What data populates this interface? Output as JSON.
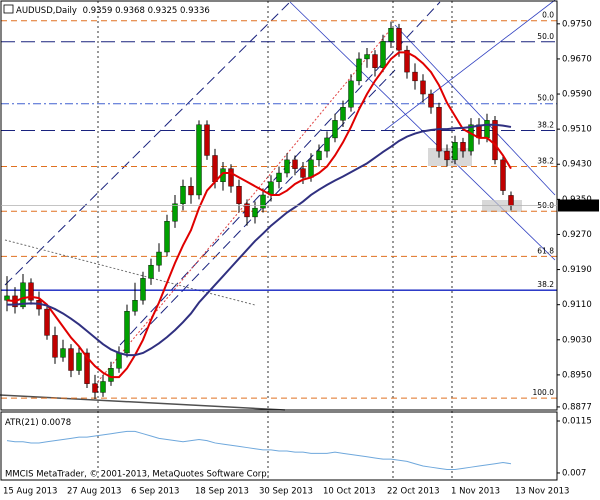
{
  "chart_data": {
    "type": "candlestick",
    "title": "AUDUSD,Daily",
    "categories": [
      "15 Aug 2013",
      null,
      null,
      null,
      null,
      null,
      null,
      null,
      "27 Aug 2013",
      null,
      null,
      null,
      null,
      null,
      null,
      null,
      "6 Sep 2013",
      null,
      null,
      null,
      null,
      null,
      null,
      null,
      "18 Sep 2013",
      null,
      null,
      null,
      null,
      null,
      null,
      null,
      "30 Sep 2013",
      null,
      null,
      null,
      null,
      null,
      null,
      null,
      "10 Oct 2013",
      null,
      null,
      null,
      null,
      null,
      null,
      null,
      "22 Oct 2013",
      null,
      null,
      null,
      null,
      null,
      null,
      null,
      "1 Nov 2013",
      null,
      null,
      null,
      null,
      null,
      null,
      null,
      "13 Nov 2013"
    ],
    "ohlc": [
      [
        0.912,
        0.9175,
        0.9095,
        0.913
      ],
      [
        0.913,
        0.915,
        0.909,
        0.9105
      ],
      [
        0.9105,
        0.918,
        0.91,
        0.916
      ],
      [
        0.916,
        0.917,
        0.911,
        0.912
      ],
      [
        0.912,
        0.914,
        0.9085,
        0.91
      ],
      [
        0.91,
        0.911,
        0.903,
        0.904
      ],
      [
        0.904,
        0.906,
        0.8975,
        0.899
      ],
      [
        0.899,
        0.903,
        0.898,
        0.901
      ],
      [
        0.901,
        0.902,
        0.8945,
        0.896
      ],
      [
        0.896,
        0.9015,
        0.895,
        0.9
      ],
      [
        0.9,
        0.901,
        0.892,
        0.893
      ],
      [
        0.893,
        0.895,
        0.8895,
        0.891
      ],
      [
        0.891,
        0.895,
        0.89,
        0.8935
      ],
      [
        0.8935,
        0.898,
        0.8925,
        0.8965
      ],
      [
        0.8965,
        0.9015,
        0.8955,
        0.9
      ],
      [
        0.9,
        0.911,
        0.899,
        0.9095
      ],
      [
        0.9095,
        0.916,
        0.9085,
        0.912
      ],
      [
        0.912,
        0.9185,
        0.911,
        0.917
      ],
      [
        0.917,
        0.9215,
        0.9155,
        0.92
      ],
      [
        0.92,
        0.925,
        0.9185,
        0.923
      ],
      [
        0.923,
        0.9315,
        0.922,
        0.93
      ],
      [
        0.93,
        0.936,
        0.9285,
        0.934
      ],
      [
        0.934,
        0.9395,
        0.9325,
        0.938
      ],
      [
        0.938,
        0.94,
        0.934,
        0.936
      ],
      [
        0.936,
        0.953,
        0.935,
        0.952
      ],
      [
        0.952,
        0.953,
        0.944,
        0.945
      ],
      [
        0.945,
        0.9465,
        0.9375,
        0.939
      ],
      [
        0.939,
        0.9435,
        0.937,
        0.942
      ],
      [
        0.942,
        0.943,
        0.9365,
        0.938
      ],
      [
        0.938,
        0.9395,
        0.932,
        0.934
      ],
      [
        0.934,
        0.935,
        0.929,
        0.931
      ],
      [
        0.931,
        0.9345,
        0.9295,
        0.933
      ],
      [
        0.933,
        0.9375,
        0.932,
        0.936
      ],
      [
        0.936,
        0.9405,
        0.9345,
        0.939
      ],
      [
        0.939,
        0.9425,
        0.9375,
        0.941
      ],
      [
        0.941,
        0.9455,
        0.94,
        0.944
      ],
      [
        0.944,
        0.945,
        0.9405,
        0.942
      ],
      [
        0.942,
        0.9435,
        0.9385,
        0.94
      ],
      [
        0.94,
        0.9455,
        0.939,
        0.944
      ],
      [
        0.944,
        0.9475,
        0.9425,
        0.946
      ],
      [
        0.946,
        0.9505,
        0.9445,
        0.949
      ],
      [
        0.949,
        0.9545,
        0.948,
        0.953
      ],
      [
        0.953,
        0.9575,
        0.9515,
        0.956
      ],
      [
        0.956,
        0.9635,
        0.955,
        0.962
      ],
      [
        0.962,
        0.9685,
        0.961,
        0.967
      ],
      [
        0.967,
        0.9695,
        0.965,
        0.968
      ],
      [
        0.968,
        0.969,
        0.963,
        0.965
      ],
      [
        0.965,
        0.9725,
        0.964,
        0.971
      ],
      [
        0.971,
        0.9755,
        0.9695,
        0.974
      ],
      [
        0.974,
        0.975,
        0.9675,
        0.969
      ],
      [
        0.969,
        0.97,
        0.9625,
        0.964
      ],
      [
        0.964,
        0.966,
        0.96,
        0.962
      ],
      [
        0.962,
        0.9635,
        0.957,
        0.959
      ],
      [
        0.959,
        0.96,
        0.9545,
        0.956
      ],
      [
        0.956,
        0.957,
        0.9445,
        0.946
      ],
      [
        0.946,
        0.9475,
        0.9425,
        0.944
      ],
      [
        0.944,
        0.9495,
        0.943,
        0.948
      ],
      [
        0.948,
        0.949,
        0.9445,
        0.946
      ],
      [
        0.946,
        0.9535,
        0.945,
        0.952
      ],
      [
        0.952,
        0.9535,
        0.9475,
        0.949
      ],
      [
        0.949,
        0.9545,
        0.948,
        0.953
      ],
      [
        0.953,
        0.954,
        0.943,
        0.944
      ],
      [
        0.944,
        0.945,
        0.936,
        0.937
      ],
      [
        0.9359,
        0.9368,
        0.9325,
        0.9336
      ],
      null
    ],
    "bull_color": "#00a000",
    "bear_color": "#c00000",
    "series": [
      {
        "color": "#e00000",
        "values": [
          0.912,
          0.9118,
          0.9125,
          0.9128,
          0.9125,
          0.911,
          0.9085,
          0.906,
          0.9035,
          0.9015,
          0.899,
          0.897,
          0.8955,
          0.8945,
          0.8945,
          0.8965,
          0.8995,
          0.903,
          0.9075,
          0.9115,
          0.916,
          0.9205,
          0.9245,
          0.928,
          0.933,
          0.937,
          0.939,
          0.941,
          0.941,
          0.94,
          0.939,
          0.938,
          0.937,
          0.936,
          0.936,
          0.937,
          0.9385,
          0.9395,
          0.94,
          0.941,
          0.9425,
          0.945,
          0.948,
          0.9515,
          0.9555,
          0.959,
          0.962,
          0.9645,
          0.967,
          0.9685,
          0.9685,
          0.9675,
          0.966,
          0.964,
          0.961,
          0.957,
          0.954,
          0.951,
          0.95,
          0.949,
          0.949,
          0.9475,
          0.945,
          0.942,
          null
        ]
      },
      {
        "color": "#303080",
        "values": [
          0.911,
          0.911,
          0.9112,
          0.9113,
          0.9112,
          0.9108,
          0.91,
          0.909,
          0.9078,
          0.9065,
          0.905,
          0.9035,
          0.902,
          0.9008,
          0.9,
          0.8995,
          0.8995,
          0.9,
          0.901,
          0.9022,
          0.9036,
          0.9052,
          0.907,
          0.909,
          0.9115,
          0.9135,
          0.9155,
          0.9175,
          0.9195,
          0.9215,
          0.9235,
          0.9255,
          0.9272,
          0.929,
          0.9305,
          0.932,
          0.9332,
          0.9345,
          0.936,
          0.9372,
          0.9383,
          0.9393,
          0.9402,
          0.9412,
          0.9422,
          0.9432,
          0.9445,
          0.9458,
          0.947,
          0.9483,
          0.9493,
          0.95,
          0.9505,
          0.9508,
          0.951,
          0.951,
          0.9512,
          0.9513,
          0.9515,
          0.9518,
          0.952,
          0.952,
          0.9518,
          0.9515,
          null
        ]
      }
    ],
    "ylim": [
      0.887,
      0.9802
    ],
    "yticks": [
      {
        "value": 0.975,
        "label": "0.9750"
      },
      {
        "value": 0.967,
        "label": "0.9670"
      },
      {
        "value": 0.959,
        "label": "0.9590"
      },
      {
        "value": 0.951,
        "label": "0.9510"
      },
      {
        "value": 0.943,
        "label": "0.9430"
      },
      {
        "value": 0.935,
        "label": "0.9350"
      },
      {
        "value": 0.927,
        "label": "0.9270"
      },
      {
        "value": 0.919,
        "label": "0.9190"
      },
      {
        "value": 0.911,
        "label": "0.9110"
      },
      {
        "value": 0.903,
        "label": "0.9030"
      },
      {
        "value": 0.895,
        "label": "0.8950"
      },
      0.8877
    ],
    "levels": [
      {
        "label": "0.0",
        "price": 0.9757,
        "color": "#e07020",
        "style": "dash"
      },
      {
        "label": "50.0",
        "price": 0.9709,
        "color": "#1a237e",
        "style": "longdash"
      },
      {
        "label": "50.0",
        "price": 0.9568,
        "color": "#4060d0",
        "style": "dashdot"
      },
      {
        "label": "38.2",
        "price": 0.9507,
        "color": "#1a237e",
        "style": "longdash"
      },
      {
        "label": "38.2",
        "price": 0.9425,
        "color": "#e07020",
        "style": "dash"
      },
      {
        "label": "50.0",
        "price": 0.9323,
        "color": "#e07020",
        "style": "dash"
      },
      {
        "label": "61.8",
        "price": 0.922,
        "color": "#e07020",
        "style": "dash"
      },
      {
        "label": "38.2",
        "price": 0.9143,
        "color": "#1020c0",
        "style": "solid"
      },
      {
        "label": "100.0",
        "price": 0.8897,
        "color": "#e07020",
        "style": "dash"
      }
    ],
    "atr": {
      "name": "ATR(21)",
      "color": "#6fa8dc",
      "values": [
        0.0098,
        0.0097,
        0.0097,
        0.0096,
        0.0096,
        0.0097,
        0.0098,
        0.0099,
        0.01,
        0.0101,
        0.0101,
        0.0102,
        0.0103,
        0.0104,
        0.0105,
        0.0106,
        0.0106,
        0.0104,
        0.0102,
        0.01,
        0.0099,
        0.0098,
        0.0097,
        0.0098,
        0.0099,
        0.0098,
        0.0096,
        0.0095,
        0.0094,
        0.0093,
        0.0092,
        0.0091,
        0.009,
        0.009,
        0.0089,
        0.0089,
        0.0088,
        0.0088,
        0.0087,
        0.0087,
        0.0087,
        0.0088,
        0.0087,
        0.0086,
        0.0085,
        0.0084,
        0.0083,
        0.0082,
        0.0082,
        0.0081,
        0.008,
        0.0078,
        0.0076,
        0.0075,
        0.0074,
        0.0073,
        0.0073,
        0.0074,
        0.0075,
        0.0076,
        0.0077,
        0.0078,
        0.0079,
        0.0078,
        null
      ],
      "ylim": [
        0.00639,
        0.01228
      ],
      "yticks": [
        0.0115,
        0.007
      ]
    },
    "copyright": "MMCIS MetaTrader, © 2001-2013, MetaQuotes Software Corp."
  }
}
